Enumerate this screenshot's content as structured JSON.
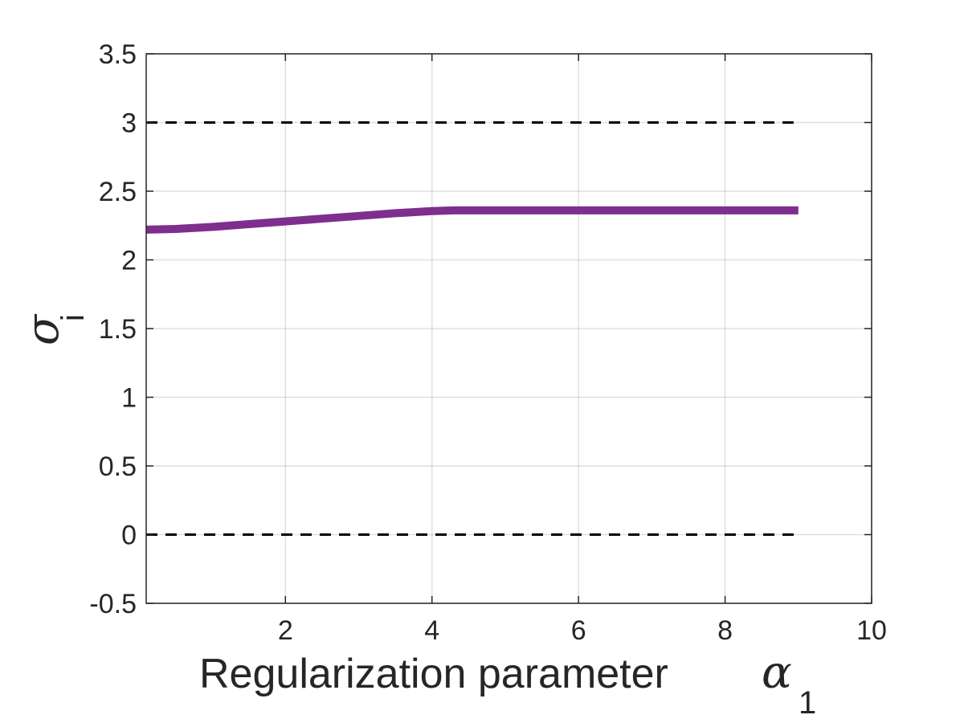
{
  "chart_data": {
    "type": "line",
    "xlabel": "Regularization parameter",
    "xlabel_symbol": "α",
    "xlabel_subscript": "1",
    "ylabel_symbol": "σ",
    "ylabel_subscript": "i",
    "xlim": [
      0.1,
      10
    ],
    "ylim": [
      -0.5,
      3.5
    ],
    "x_ticks": [
      2,
      4,
      6,
      8,
      10
    ],
    "y_ticks": [
      -0.5,
      0,
      0.5,
      1,
      1.5,
      2,
      2.5,
      3,
      3.5
    ],
    "x_tick_labels": [
      "2",
      "4",
      "6",
      "8",
      "10"
    ],
    "y_tick_labels": [
      "-0.5",
      "0",
      "0.5",
      "1",
      "1.5",
      "2",
      "2.5",
      "3",
      "3.5"
    ],
    "grid": true,
    "series": [
      {
        "color": "#7E2F8E",
        "style": "solid",
        "x": [
          0.1,
          0.5,
          1.0,
          1.5,
          2.0,
          2.5,
          3.0,
          3.5,
          4.0,
          4.3,
          5.0,
          6.0,
          7.0,
          8.0,
          9.0
        ],
        "y": [
          2.22,
          2.225,
          2.24,
          2.26,
          2.28,
          2.3,
          2.32,
          2.34,
          2.355,
          2.36,
          2.36,
          2.36,
          2.36,
          2.36,
          2.36
        ]
      },
      {
        "color": "#000000",
        "style": "dashed",
        "x": [
          0.1,
          9.0
        ],
        "y": [
          3,
          3
        ]
      },
      {
        "color": "#000000",
        "style": "dashed",
        "x": [
          0.1,
          9.0
        ],
        "y": [
          0,
          0
        ]
      }
    ]
  }
}
